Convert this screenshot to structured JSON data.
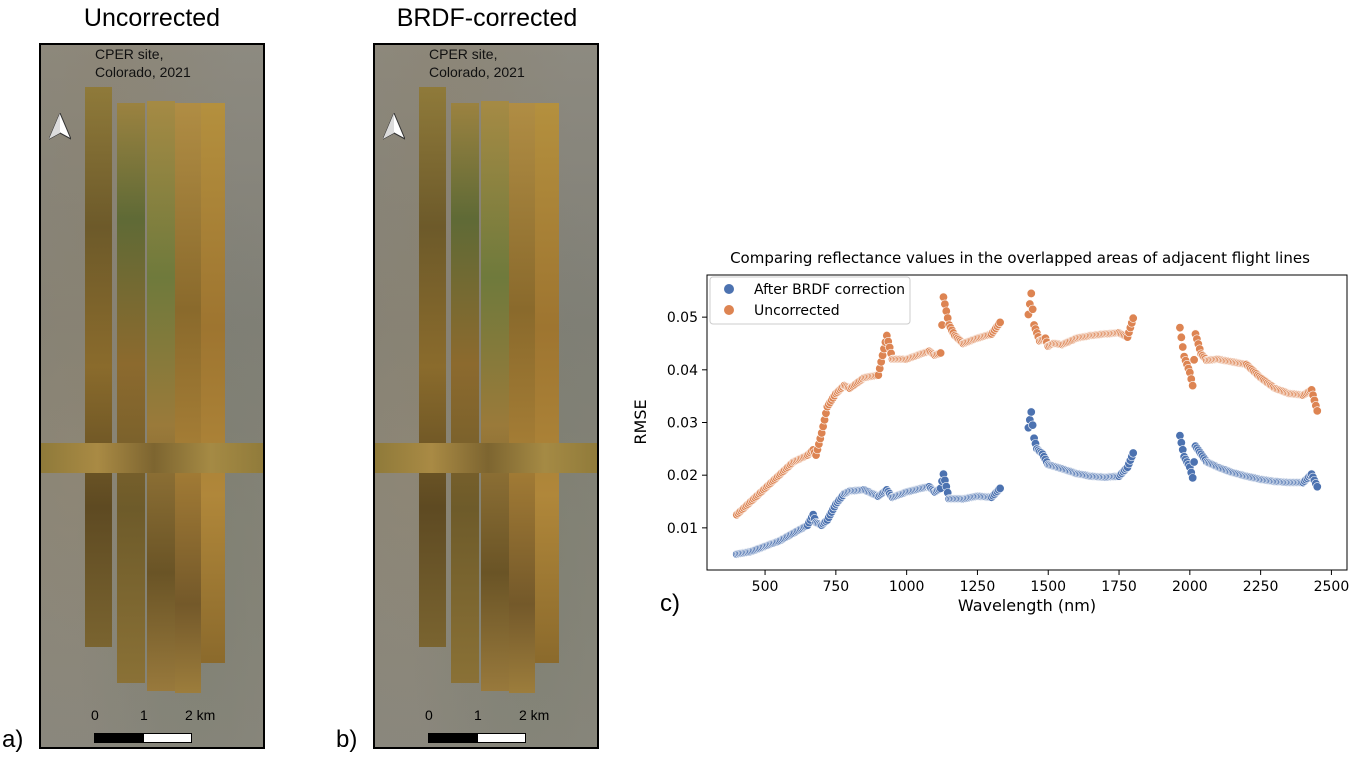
{
  "panels": {
    "a": {
      "title": "Uncorrected",
      "letter": "a)"
    },
    "b": {
      "title": "BRDF-corrected",
      "letter": "b)"
    },
    "c": {
      "letter": "c)"
    }
  },
  "map": {
    "site_label_line1": "CPER site,",
    "site_label_line2": "Colorado, 2021",
    "scale_labels": [
      "0",
      "1",
      "2 km"
    ]
  },
  "colors": {
    "corrected": "#4c72b0",
    "uncorrected": "#dd8452"
  },
  "chart_data": {
    "type": "scatter",
    "title": "Comparing reflectance values in the overlapped areas of adjacent flight lines",
    "xlabel": "Wavelength (nm)",
    "ylabel": "RMSE",
    "xlim": [
      295,
      2555
    ],
    "ylim": [
      0.002,
      0.058
    ],
    "xticks": [
      500,
      750,
      1000,
      1250,
      1500,
      1750,
      2000,
      2250,
      2500
    ],
    "yticks": [
      0.01,
      0.02,
      0.03,
      0.04,
      0.05
    ],
    "legend_location": "top-left",
    "series": [
      {
        "name": "After BRDF correction",
        "color": "#4c72b0",
        "segments": [
          {
            "x": [
              400,
              450,
              500,
              550,
              600,
              650,
              670,
              680,
              700,
              720,
              750,
              780,
              800,
              850,
              900,
              930,
              950,
              1000,
              1050,
              1080,
              1100,
              1120,
              1130,
              1150,
              1200,
              1250,
              1300,
              1330
            ],
            "y": [
              0.005,
              0.0055,
              0.0065,
              0.0075,
              0.009,
              0.0105,
              0.0125,
              0.011,
              0.0105,
              0.0115,
              0.0145,
              0.0165,
              0.017,
              0.0172,
              0.016,
              0.0172,
              0.0158,
              0.0168,
              0.0175,
              0.0178,
              0.0168,
              0.0175,
              0.0202,
              0.0155,
              0.0155,
              0.016,
              0.0158,
              0.0175
            ]
          },
          {
            "x": [
              1430,
              1440,
              1450,
              1460,
              1480,
              1500,
              1550,
              1600,
              1650,
              1700,
              1750,
              1780,
              1800
            ],
            "y": [
              0.029,
              0.032,
              0.027,
              0.025,
              0.024,
              0.022,
              0.0212,
              0.0203,
              0.0198,
              0.0196,
              0.0198,
              0.0215,
              0.0242
            ]
          },
          {
            "x": [
              1965,
              1980,
              2000,
              2010,
              2020,
              2040,
              2060,
              2100,
              2150,
              2200,
              2250,
              2300,
              2350,
              2400,
              2430,
              2450
            ],
            "y": [
              0.0275,
              0.0235,
              0.0215,
              0.0195,
              0.0255,
              0.024,
              0.0225,
              0.0215,
              0.0205,
              0.0198,
              0.0192,
              0.0188,
              0.0186,
              0.0186,
              0.0202,
              0.0178
            ]
          }
        ]
      },
      {
        "name": "Uncorrected",
        "color": "#dd8452",
        "segments": [
          {
            "x": [
              400,
              450,
              500,
              550,
              600,
              650,
              670,
              680,
              700,
              720,
              750,
              780,
              800,
              850,
              900,
              930,
              950,
              1000,
              1050,
              1080,
              1100,
              1120,
              1130,
              1150,
              1170,
              1200,
              1250,
              1300,
              1330
            ],
            "y": [
              0.0125,
              0.015,
              0.0175,
              0.02,
              0.0225,
              0.0238,
              0.0248,
              0.0238,
              0.028,
              0.033,
              0.0355,
              0.037,
              0.0365,
              0.0385,
              0.039,
              0.0465,
              0.042,
              0.042,
              0.043,
              0.0435,
              0.0428,
              0.0432,
              0.0538,
              0.0485,
              0.0465,
              0.045,
              0.046,
              0.0468,
              0.049
            ]
          },
          {
            "x": [
              1430,
              1440,
              1450,
              1470,
              1490,
              1500,
              1520,
              1550,
              1600,
              1650,
              1700,
              1750,
              1780,
              1800
            ],
            "y": [
              0.0505,
              0.0545,
              0.0485,
              0.0455,
              0.046,
              0.0445,
              0.045,
              0.0448,
              0.046,
              0.0465,
              0.0468,
              0.047,
              0.0462,
              0.0498
            ]
          },
          {
            "x": [
              1965,
              1980,
              2000,
              2010,
              2020,
              2040,
              2060,
              2100,
              2150,
              2200,
              2250,
              2300,
              2350,
              2400,
              2430,
              2450
            ],
            "y": [
              0.048,
              0.0425,
              0.0395,
              0.037,
              0.0468,
              0.043,
              0.0418,
              0.042,
              0.0415,
              0.041,
              0.0385,
              0.0365,
              0.0355,
              0.0352,
              0.0362,
              0.0322
            ]
          }
        ]
      }
    ]
  }
}
